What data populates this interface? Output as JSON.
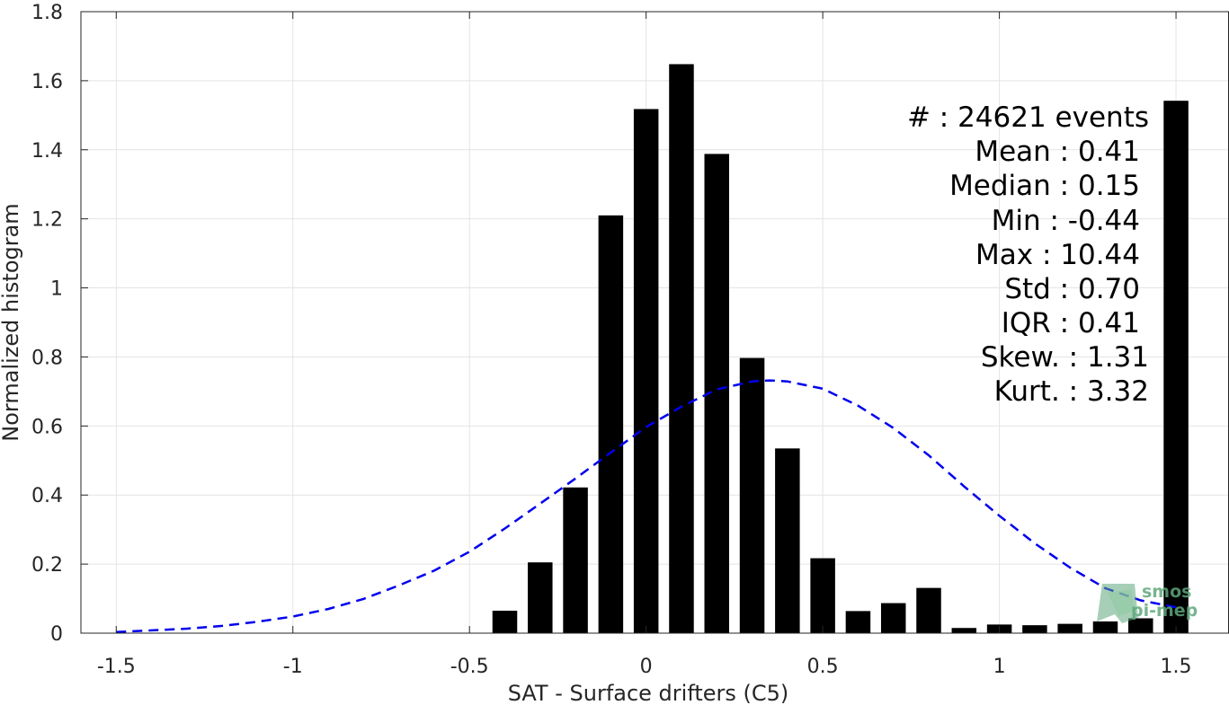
{
  "chart_data": {
    "type": "bar",
    "xlabel": "SAT - Surface drifters (C5)",
    "ylabel": "Normalized histogram",
    "xlim": [
      -1.6,
      1.65
    ],
    "ylim": [
      0,
      1.8
    ],
    "grid": true,
    "xticks": [
      -1.5,
      -1,
      -0.5,
      0,
      0.5,
      1,
      1.5
    ],
    "xtick_labels": [
      "-1.5",
      "-1",
      "-0.5",
      "0",
      "0.5",
      "1",
      "1.5"
    ],
    "yticks": [
      0,
      0.2,
      0.4,
      0.6,
      0.8,
      1,
      1.2,
      1.4,
      1.6,
      1.8
    ],
    "ytick_labels": [
      "0",
      "0.2",
      "0.4",
      "0.6",
      "0.8",
      "1",
      "1.2",
      "1.4",
      "1.6",
      "1.8"
    ],
    "bar_color": "#000000",
    "bar_width": 0.07,
    "bars": {
      "x": [
        -0.4,
        -0.3,
        -0.2,
        -0.1,
        0.0,
        0.1,
        0.2,
        0.3,
        0.4,
        0.5,
        0.6,
        0.7,
        0.8,
        0.9,
        1.0,
        1.1,
        1.2,
        1.3,
        1.4,
        1.5
      ],
      "values": [
        0.065,
        0.205,
        0.422,
        1.21,
        1.518,
        1.648,
        1.388,
        0.797,
        0.535,
        0.217,
        0.064,
        0.087,
        0.131,
        0.015,
        0.025,
        0.023,
        0.027,
        0.034,
        0.043,
        1.542
      ]
    },
    "fit_curve": {
      "style": "dashed",
      "color": "#0000ee",
      "x": [
        -1.5,
        -1.4,
        -1.3,
        -1.2,
        -1.1,
        -1.0,
        -0.9,
        -0.8,
        -0.7,
        -0.6,
        -0.5,
        -0.4,
        -0.3,
        -0.2,
        -0.1,
        0.0,
        0.1,
        0.2,
        0.3,
        0.35,
        0.4,
        0.5,
        0.6,
        0.7,
        0.8,
        0.9,
        1.0,
        1.1,
        1.2,
        1.3,
        1.4,
        1.5
      ],
      "values": [
        0.003,
        0.008,
        0.013,
        0.021,
        0.033,
        0.048,
        0.07,
        0.099,
        0.138,
        0.181,
        0.236,
        0.303,
        0.375,
        0.448,
        0.523,
        0.597,
        0.656,
        0.706,
        0.729,
        0.732,
        0.729,
        0.708,
        0.659,
        0.594,
        0.515,
        0.425,
        0.34,
        0.26,
        0.19,
        0.13,
        0.095,
        0.075
      ]
    },
    "annotations": [
      "#  : 24621 events",
      "Mean : 0.41",
      "Median : 0.15",
      "Min : -0.44",
      "Max : 10.44",
      "Std : 0.70",
      "IQR : 0.41",
      "Skew. : 1.31",
      "Kurt. : 3.32"
    ],
    "logo": {
      "line1": "smos",
      "line2": "pi-mep",
      "color": "#5fa77c"
    }
  }
}
